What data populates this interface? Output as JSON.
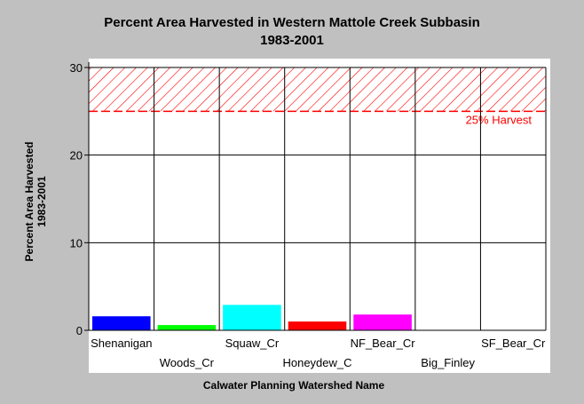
{
  "chart_data": {
    "type": "bar",
    "title": [
      "Percent Area Harvested in Western Mattole Creek Subbasin",
      "1983-2001"
    ],
    "xlabel": "Calwater Planning Watershed Name",
    "ylabel": [
      "Percent Area Harvested",
      "1983-2001"
    ],
    "ylim": [
      0,
      30
    ],
    "yticks": [
      0,
      10,
      20,
      30
    ],
    "grid": true,
    "categories": [
      "Shenanigan",
      "Woods_Cr",
      "Squaw_Cr",
      "Honeydew_C",
      "NF_Bear_Cr",
      "Big_Finley",
      "SF_Bear_Cr"
    ],
    "values": [
      1.6,
      0.6,
      2.9,
      1.0,
      1.8,
      0,
      0
    ],
    "colors": [
      "#0000ff",
      "#00ff00",
      "#00ffff",
      "#ff0000",
      "#ff00ff",
      "#ffff00",
      "#ff8000"
    ],
    "threshold": {
      "label": "25% Harvest",
      "value": 25,
      "color": "#ff0000"
    }
  }
}
